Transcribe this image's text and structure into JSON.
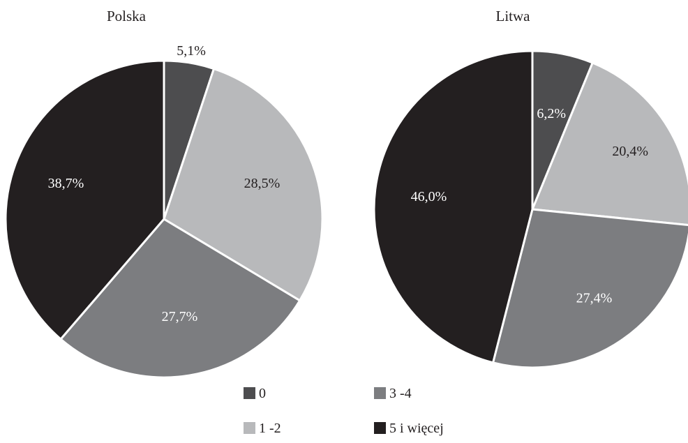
{
  "colors": {
    "0": "#4d4d4f",
    "1-2": "#b8b9bb",
    "3-4": "#7c7d80",
    "5+": "#231f20",
    "slice_border": "#ffffff",
    "label_dark": "#231f20",
    "label_light": "#ffffff"
  },
  "legend": [
    {
      "key": "0",
      "label": "0"
    },
    {
      "key": "3-4",
      "label": "3 -4"
    },
    {
      "key": "1-2",
      "label": "1 -2"
    },
    {
      "key": "5+",
      "label": "5 i więcej"
    }
  ],
  "chart_data": [
    {
      "type": "pie",
      "title": "Polska",
      "categories": [
        "0",
        "1-2",
        "3-4",
        "5+"
      ],
      "values": [
        5.1,
        28.5,
        27.7,
        38.7
      ],
      "value_labels": [
        "5,1%",
        "28,5%",
        "27,7%",
        "38,7%"
      ],
      "legend_placement": "bottom"
    },
    {
      "type": "pie",
      "title": "Litwa",
      "categories": [
        "0",
        "1-2",
        "3-4",
        "5+"
      ],
      "values": [
        6.2,
        20.4,
        27.4,
        46.0
      ],
      "value_labels": [
        "6,2%",
        "20,4%",
        "27,4%",
        "46,0%"
      ],
      "legend_placement": "bottom"
    }
  ]
}
